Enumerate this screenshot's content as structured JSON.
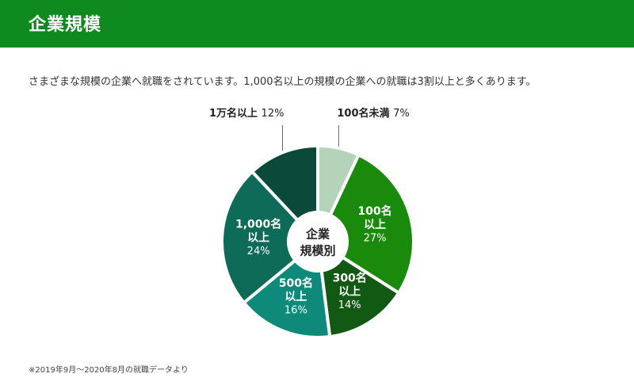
{
  "header": {
    "title": "企業規模"
  },
  "intro": {
    "text": "さまざまな規模の企業へ就職をされています。1,000名以上の規模の企業への就職は3割以上と多くあります。"
  },
  "chart_data": {
    "type": "pie",
    "center_label": [
      "企業",
      "規模別"
    ],
    "series": [
      {
        "name": "100名未満",
        "value": 7,
        "label": "7%",
        "color": "#b5d3b9",
        "label_lines": [
          "100名未満"
        ],
        "outside": true
      },
      {
        "name": "100名以上",
        "value": 27,
        "label": "27%",
        "color": "#1a8a0c",
        "label_lines": [
          "100名",
          "以上"
        ],
        "outside": false
      },
      {
        "name": "300名以上",
        "value": 14,
        "label": "14%",
        "color": "#125a14",
        "label_lines": [
          "300名",
          "以上"
        ],
        "outside": false
      },
      {
        "name": "500名以上",
        "value": 16,
        "label": "16%",
        "color": "#0e8a7a",
        "label_lines": [
          "500名",
          "以上"
        ],
        "outside": false
      },
      {
        "name": "1,000名以上",
        "value": 24,
        "label": "24%",
        "color": "#0d6b57",
        "label_lines": [
          "1,000名",
          "以上"
        ],
        "outside": false
      },
      {
        "name": "1万名以上",
        "value": 12,
        "label": "12%",
        "color": "#0b4a3b",
        "label_lines": [
          "1万名以上"
        ],
        "outside": true
      }
    ]
  },
  "footnote": {
    "text": "※2019年9月〜2020年8月の就職データより"
  },
  "colors": {
    "header_bg": "#0f8a1f",
    "header_text": "#ffffff"
  }
}
